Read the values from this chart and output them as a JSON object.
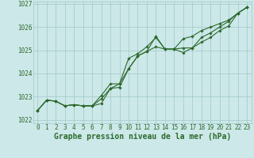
{
  "x": [
    0,
    1,
    2,
    3,
    4,
    5,
    6,
    7,
    8,
    9,
    10,
    11,
    12,
    13,
    14,
    15,
    16,
    17,
    18,
    19,
    20,
    21,
    22,
    23
  ],
  "line1": [
    1022.4,
    1022.85,
    1022.8,
    1022.6,
    1022.65,
    1022.6,
    1022.6,
    1022.7,
    1023.35,
    1023.55,
    1024.2,
    1024.75,
    1024.95,
    1025.15,
    1025.05,
    1025.05,
    1024.9,
    1025.1,
    1025.35,
    1025.55,
    1025.85,
    1026.05,
    1026.6,
    1026.85
  ],
  "line2": [
    1022.4,
    1022.85,
    1022.8,
    1022.6,
    1022.65,
    1022.6,
    1022.6,
    1023.05,
    1023.55,
    1023.55,
    1024.65,
    1024.85,
    1025.15,
    1025.55,
    1025.05,
    1025.05,
    1025.5,
    1025.6,
    1025.85,
    1026.0,
    1026.15,
    1026.3,
    1026.6,
    1026.85
  ],
  "line3": [
    1022.4,
    1022.85,
    1022.8,
    1022.6,
    1022.65,
    1022.6,
    1022.6,
    1022.9,
    1023.35,
    1023.4,
    1024.2,
    1024.75,
    1024.95,
    1025.6,
    1025.05,
    1025.05,
    1025.1,
    1025.1,
    1025.55,
    1025.75,
    1026.0,
    1026.25,
    1026.6,
    1026.85
  ],
  "ylim": [
    1021.85,
    1027.1
  ],
  "yticks": [
    1022,
    1023,
    1024,
    1025,
    1026,
    1027
  ],
  "xticks": [
    0,
    1,
    2,
    3,
    4,
    5,
    6,
    7,
    8,
    9,
    10,
    11,
    12,
    13,
    14,
    15,
    16,
    17,
    18,
    19,
    20,
    21,
    22,
    23
  ],
  "line_color": "#2d6a2d",
  "marker": "D",
  "marker_size": 1.8,
  "bg_color": "#cce8e8",
  "grid_color": "#a0c8c8",
  "xlabel": "Graphe pression niveau de la mer (hPa)",
  "xlabel_color": "#2d6a2d",
  "xlabel_fontsize": 7.0,
  "tick_fontsize": 5.5,
  "linewidth": 0.8
}
